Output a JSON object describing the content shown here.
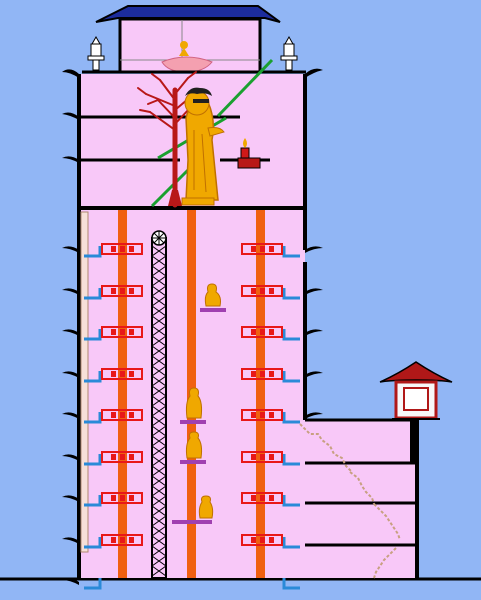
{
  "colors": {
    "sky": "#91b6f5",
    "interior": "#f8c8f8",
    "wall": "#000000",
    "roof_blue": "#1c2c9c",
    "pillar_orange": "#f06010",
    "rack_red": "#e81818",
    "duct_blue": "#2a8ad8",
    "platform_purple": "#a040b0",
    "stair_green": "#1aa030",
    "buddha_gold": "#f0a800",
    "tree_red": "#b81818",
    "pavilion_red": "#b01818",
    "stair_tan": "#c8a080"
  },
  "structure": {
    "upper_floor_count": 3,
    "tower_floor_count": 9
  }
}
